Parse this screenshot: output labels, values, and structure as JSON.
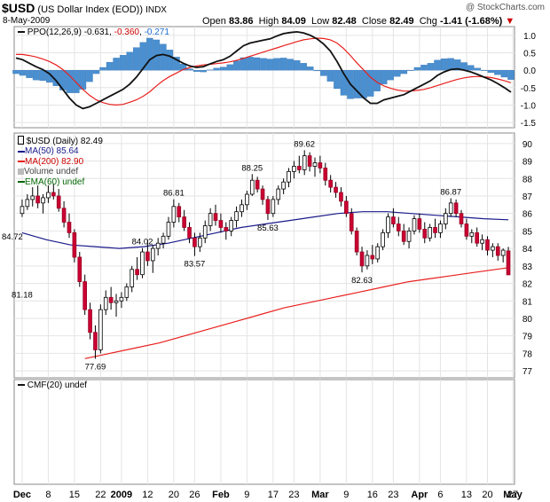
{
  "header": {
    "symbol": "$USD",
    "name": "(US Dollar Index (EOD))",
    "exchange": "INDX",
    "date": "8-May-2009",
    "watermark": "@ StockCharts.com",
    "open_label": "Open",
    "open": "83.86",
    "high_label": "High",
    "high": "84.09",
    "low_label": "Low",
    "low": "82.48",
    "close_label": "Close",
    "close": "82.49",
    "chg_label": "Chg",
    "chg": "-1.41 (-1.68%)"
  },
  "legend": {
    "ppo_prefix": "PPO(12,26,9)",
    "ppo_val": "-0.631",
    "ppo_signal": "-0.360",
    "ppo_hist": "-0.271",
    "price": "$USD (Daily) 82.49",
    "ma50": "MA(50) 85.64",
    "ma200": "MA(200) 82.90",
    "volume": "Volume undef",
    "ema60": "EMA(60) undef",
    "cmf": "CMF(20) undef"
  },
  "colors": {
    "up": "#ffffff",
    "down": "#cc0033",
    "ma50": "#1a1a8c",
    "ma200": "#e8201e",
    "ppo": "#111111",
    "signal": "#e8201e",
    "hist": "#4a8fd0",
    "grid": "#e4e4e4"
  },
  "chart_data": [
    {
      "type": "line",
      "name": "PPO(12,26,9)",
      "yticks": [
        1.0,
        0.5,
        0.0,
        -0.5,
        -1.0,
        -1.5
      ],
      "ylim": [
        -1.65,
        1.25
      ],
      "series": [
        {
          "name": "PPO",
          "values": [
            0.35,
            0.3,
            0.2,
            0.1,
            0.02,
            -0.1,
            -0.3,
            -0.55,
            -0.8,
            -1.0,
            -1.1,
            -1.05,
            -0.95,
            -0.85,
            -0.75,
            -0.65,
            -0.55,
            -0.4,
            -0.2,
            0.05,
            0.3,
            0.42,
            0.45,
            0.4,
            0.3,
            0.2,
            0.12,
            0.08,
            0.1,
            0.18,
            0.25,
            0.3,
            0.4,
            0.55,
            0.7,
            0.78,
            0.82,
            0.86,
            0.9,
            0.98,
            1.05,
            1.08,
            1.1,
            1.07,
            1.0,
            0.9,
            0.75,
            0.55,
            0.25,
            -0.1,
            -0.4,
            -0.6,
            -0.8,
            -0.95,
            -0.95,
            -0.85,
            -0.8,
            -0.75,
            -0.7,
            -0.6,
            -0.5,
            -0.4,
            -0.3,
            -0.15,
            -0.05,
            0.02,
            0.04,
            0.0,
            -0.05,
            -0.12,
            -0.2,
            -0.28,
            -0.38,
            -0.5,
            -0.63
          ]
        },
        {
          "name": "Signal",
          "values": [
            0.45,
            0.45,
            0.42,
            0.38,
            0.32,
            0.25,
            0.15,
            0.02,
            -0.15,
            -0.35,
            -0.55,
            -0.72,
            -0.85,
            -0.93,
            -0.98,
            -1.0,
            -0.98,
            -0.92,
            -0.85,
            -0.75,
            -0.62,
            -0.45,
            -0.3,
            -0.18,
            -0.08,
            0.02,
            0.08,
            0.12,
            0.15,
            0.17,
            0.19,
            0.21,
            0.24,
            0.28,
            0.34,
            0.4,
            0.46,
            0.52,
            0.58,
            0.64,
            0.7,
            0.76,
            0.82,
            0.87,
            0.9,
            0.92,
            0.91,
            0.87,
            0.78,
            0.62,
            0.42,
            0.2,
            0.0,
            -0.2,
            -0.35,
            -0.45,
            -0.52,
            -0.57,
            -0.6,
            -0.6,
            -0.58,
            -0.55,
            -0.5,
            -0.44,
            -0.38,
            -0.32,
            -0.26,
            -0.22,
            -0.19,
            -0.18,
            -0.19,
            -0.21,
            -0.25,
            -0.3,
            -0.36
          ]
        }
      ]
    },
    {
      "type": "candlestick",
      "name": "$USD (Daily)",
      "x_tick_labels": [
        "Dec",
        "8",
        "15",
        "22",
        "2009",
        "12",
        "20",
        "26",
        "Feb",
        "9",
        "17",
        "23",
        "Mar",
        "9",
        "16",
        "23",
        "Apr",
        "6",
        "13",
        "20",
        "27",
        "May"
      ],
      "yticks": [
        90,
        89,
        88,
        87,
        86,
        85,
        84,
        83,
        82,
        81,
        80,
        79,
        78,
        77
      ],
      "ylim": [
        76.6,
        90.6
      ],
      "annotations": [
        {
          "text": "84.72",
          "value": 84.72
        },
        {
          "text": "77.69",
          "value": 77.69
        },
        {
          "text": "84.02",
          "value": 84.02
        },
        {
          "text": "81.18",
          "value": 81.18
        },
        {
          "text": "86.81",
          "value": 86.81
        },
        {
          "text": "83.57",
          "value": 83.57
        },
        {
          "text": "88.25",
          "value": 88.25
        },
        {
          "text": "85.63",
          "value": 85.63
        },
        {
          "text": "89.62",
          "value": 89.62
        },
        {
          "text": "82.63",
          "value": 82.63
        },
        {
          "text": "86.87",
          "value": 86.87
        }
      ],
      "ohlc": [
        [
          86.0,
          86.8,
          85.8,
          86.4
        ],
        [
          86.4,
          87.1,
          86.2,
          86.8
        ],
        [
          86.8,
          87.5,
          86.4,
          87.0
        ],
        [
          87.0,
          87.6,
          86.3,
          86.6
        ],
        [
          86.6,
          87.1,
          86.0,
          86.9
        ],
        [
          86.9,
          87.6,
          86.6,
          87.2
        ],
        [
          87.2,
          87.7,
          86.8,
          87.0
        ],
        [
          87.0,
          87.4,
          86.1,
          86.3
        ],
        [
          86.3,
          86.7,
          85.2,
          85.5
        ],
        [
          85.5,
          86.0,
          84.6,
          84.9
        ],
        [
          84.9,
          85.1,
          83.2,
          83.5
        ],
        [
          83.5,
          83.8,
          81.8,
          82.1
        ],
        [
          82.1,
          82.5,
          80.2,
          80.5
        ],
        [
          80.5,
          80.9,
          78.8,
          79.2
        ],
        [
          79.2,
          79.6,
          77.69,
          78.2
        ],
        [
          78.2,
          80.8,
          78.0,
          80.5
        ],
        [
          80.5,
          81.6,
          80.2,
          81.2
        ],
        [
          81.2,
          81.8,
          80.5,
          80.9
        ],
        [
          80.9,
          81.4,
          80.1,
          81.0
        ],
        [
          81.0,
          81.5,
          80.6,
          81.2
        ],
        [
          81.2,
          82.0,
          81.0,
          81.8
        ],
        [
          81.8,
          83.0,
          81.5,
          82.8
        ],
        [
          82.8,
          83.5,
          82.2,
          82.5
        ],
        [
          82.5,
          84.02,
          82.3,
          83.8
        ],
        [
          83.8,
          84.5,
          83.0,
          83.3
        ],
        [
          83.3,
          84.2,
          82.6,
          84.0
        ],
        [
          84.0,
          84.6,
          83.6,
          84.3
        ],
        [
          84.3,
          84.9,
          84.0,
          84.7
        ],
        [
          84.7,
          85.8,
          84.5,
          85.5
        ],
        [
          85.5,
          86.81,
          85.2,
          86.4
        ],
        [
          86.4,
          86.6,
          85.5,
          85.8
        ],
        [
          85.8,
          86.2,
          85.0,
          85.2
        ],
        [
          85.2,
          85.5,
          84.3,
          84.6
        ],
        [
          84.6,
          84.9,
          83.57,
          84.1
        ],
        [
          84.1,
          84.9,
          83.8,
          84.6
        ],
        [
          84.6,
          85.6,
          84.3,
          85.3
        ],
        [
          85.3,
          86.3,
          85.0,
          86.0
        ],
        [
          86.0,
          86.5,
          85.3,
          85.6
        ],
        [
          85.6,
          86.0,
          84.9,
          85.2
        ],
        [
          85.2,
          85.5,
          84.5,
          85.0
        ],
        [
          85.0,
          85.8,
          84.7,
          85.6
        ],
        [
          85.6,
          86.4,
          85.2,
          86.1
        ],
        [
          86.1,
          86.8,
          85.8,
          86.5
        ],
        [
          86.5,
          87.3,
          86.2,
          87.1
        ],
        [
          87.1,
          88.25,
          87.0,
          87.9
        ],
        [
          87.9,
          88.1,
          87.2,
          87.4
        ],
        [
          87.4,
          87.6,
          86.5,
          86.8
        ],
        [
          86.8,
          87.0,
          85.63,
          86.0
        ],
        [
          86.0,
          87.0,
          85.8,
          86.8
        ],
        [
          86.8,
          87.6,
          86.5,
          87.4
        ],
        [
          87.4,
          88.0,
          87.1,
          87.8
        ],
        [
          87.8,
          88.6,
          87.5,
          88.4
        ],
        [
          88.4,
          89.0,
          88.0,
          88.7
        ],
        [
          88.7,
          89.3,
          88.3,
          88.5
        ],
        [
          88.5,
          89.62,
          88.2,
          89.3
        ],
        [
          89.3,
          89.5,
          88.4,
          88.7
        ],
        [
          88.7,
          89.2,
          88.1,
          88.9
        ],
        [
          88.9,
          89.3,
          88.3,
          88.6
        ],
        [
          88.6,
          88.9,
          87.6,
          87.9
        ],
        [
          87.9,
          88.2,
          87.2,
          87.5
        ],
        [
          87.5,
          87.8,
          86.9,
          87.2
        ],
        [
          87.2,
          87.5,
          86.4,
          86.7
        ],
        [
          86.7,
          87.0,
          85.8,
          86.0
        ],
        [
          86.0,
          86.3,
          84.8,
          85.0
        ],
        [
          85.0,
          85.2,
          83.6,
          83.8
        ],
        [
          83.8,
          84.1,
          82.63,
          83.0
        ],
        [
          83.0,
          83.9,
          82.8,
          83.6
        ],
        [
          83.6,
          84.2,
          83.1,
          83.4
        ],
        [
          83.4,
          84.3,
          83.2,
          84.1
        ],
        [
          84.1,
          85.1,
          83.9,
          84.9
        ],
        [
          84.9,
          86.0,
          84.6,
          85.8
        ],
        [
          85.8,
          86.3,
          85.2,
          85.4
        ],
        [
          85.4,
          85.8,
          84.7,
          85.0
        ],
        [
          85.0,
          85.4,
          84.2,
          84.4
        ],
        [
          84.4,
          85.2,
          84.0,
          85.0
        ],
        [
          85.0,
          85.9,
          84.8,
          85.7
        ],
        [
          85.7,
          86.0,
          84.9,
          85.1
        ],
        [
          85.1,
          85.5,
          84.3,
          84.6
        ],
        [
          84.6,
          85.4,
          84.4,
          85.2
        ],
        [
          85.2,
          85.7,
          84.6,
          84.9
        ],
        [
          84.9,
          85.6,
          84.6,
          85.4
        ],
        [
          85.4,
          86.3,
          85.1,
          86.0
        ],
        [
          86.0,
          86.87,
          85.8,
          86.6
        ],
        [
          86.6,
          86.8,
          85.8,
          86.0
        ],
        [
          86.0,
          86.2,
          85.2,
          85.4
        ],
        [
          85.4,
          85.7,
          84.5,
          84.7
        ],
        [
          84.7,
          85.1,
          84.3,
          84.9
        ],
        [
          84.9,
          85.2,
          84.1,
          84.3
        ],
        [
          84.3,
          84.8,
          83.9,
          84.5
        ],
        [
          84.5,
          84.7,
          83.6,
          83.9
        ],
        [
          83.9,
          84.3,
          83.5,
          84.1
        ],
        [
          84.1,
          84.3,
          83.3,
          83.6
        ],
        [
          83.6,
          84.0,
          83.2,
          83.9
        ],
        [
          83.86,
          84.09,
          82.48,
          82.49
        ]
      ],
      "series": [
        {
          "name": "MA(50)",
          "values": [
            84.9,
            84.5,
            84.2,
            84.1,
            84.0,
            84.1,
            84.3,
            84.6,
            84.9,
            85.2,
            85.4,
            85.6,
            85.8,
            86.0,
            86.1,
            86.1,
            86.0,
            85.9,
            85.8,
            85.7,
            85.64
          ]
        },
        {
          "name": "MA(200)",
          "values": [
            77.7,
            78.0,
            78.3,
            78.6,
            79.0,
            79.4,
            79.8,
            80.2,
            80.6,
            80.9,
            81.2,
            81.5,
            81.8,
            82.1,
            82.3,
            82.5,
            82.7,
            82.9
          ]
        }
      ]
    }
  ]
}
